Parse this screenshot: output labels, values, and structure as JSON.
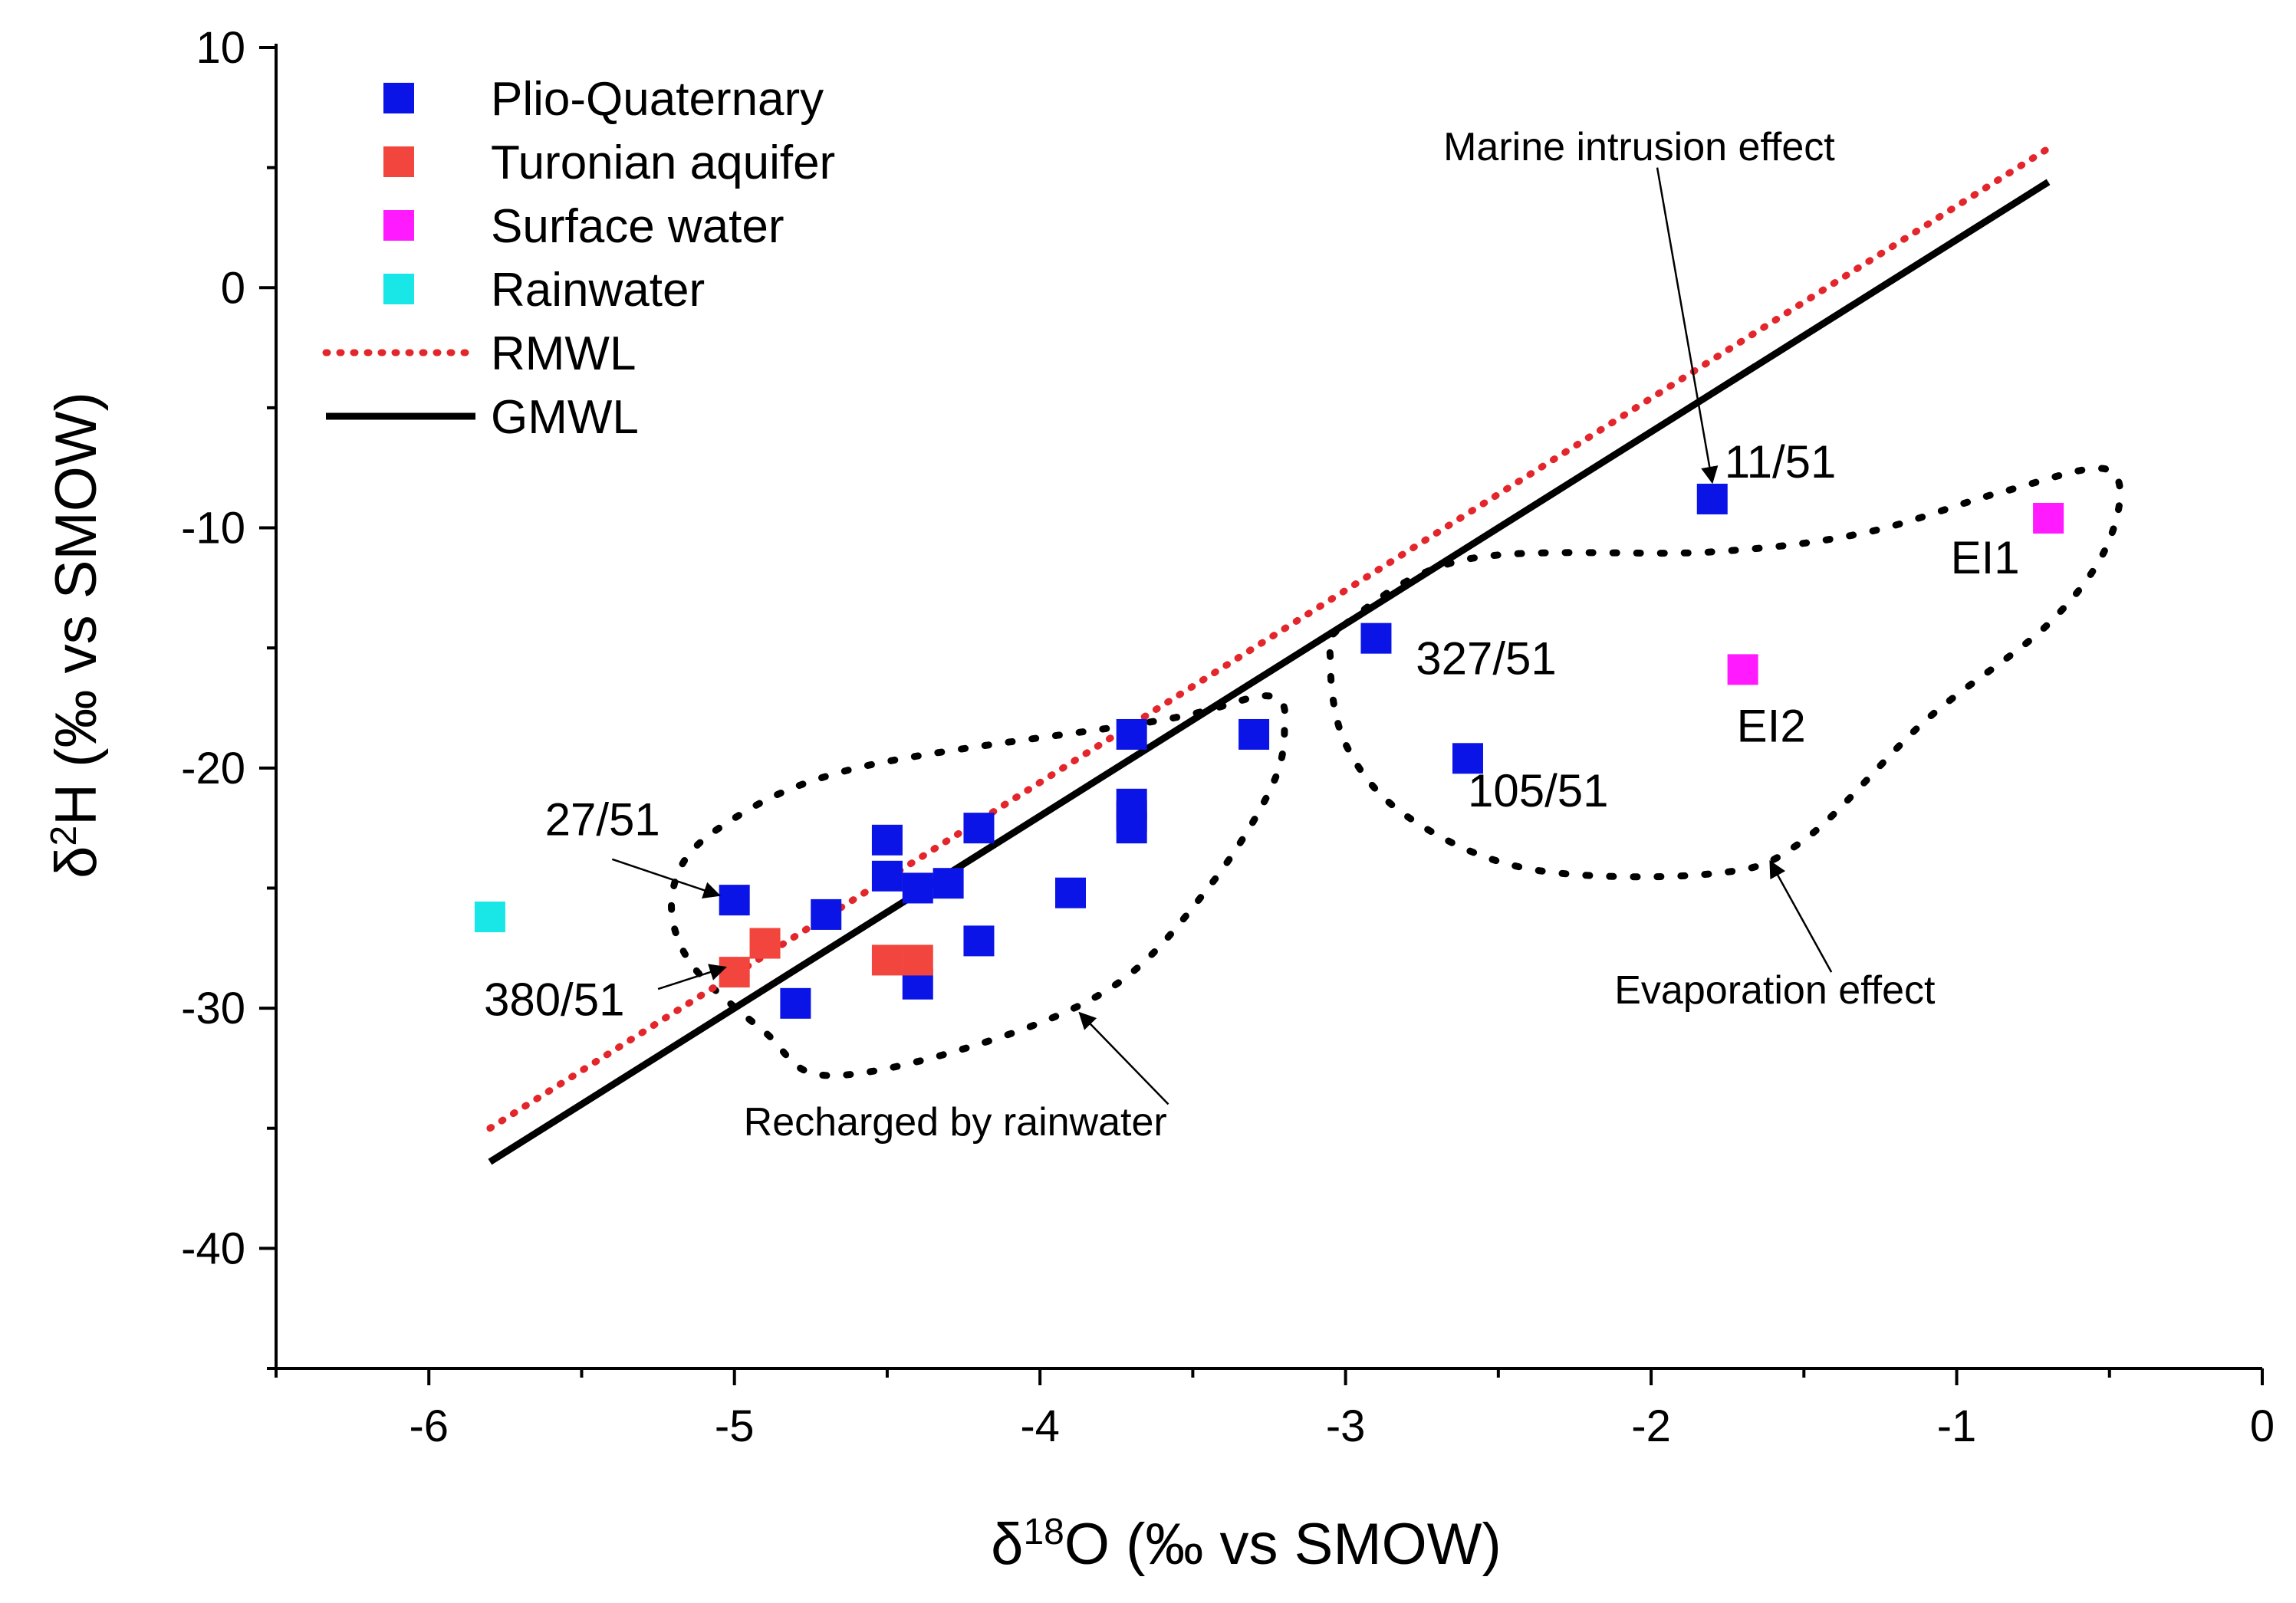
{
  "chart_data": {
    "type": "scatter",
    "title": "",
    "xlabel": {
      "prefix": "δ",
      "sup": "18",
      "suffix": "O (‰ vs SMOW)"
    },
    "ylabel": {
      "prefix": "δ",
      "sup": "2",
      "suffix": "H (‰ vs SMOW)"
    },
    "xlim": [
      -6.5,
      0
    ],
    "ylim": [
      -45,
      10
    ],
    "xticks": [
      -6,
      -5,
      -4,
      -3,
      -2,
      -1,
      0
    ],
    "yticks": [
      10,
      0,
      -10,
      -20,
      -30,
      -40
    ],
    "xtick_labels": [
      "-6",
      "-5",
      "-4",
      "-3",
      "-2",
      "-1",
      "0"
    ],
    "ytick_labels": [
      "10",
      "0",
      "-10",
      "-20",
      "-30",
      "-40"
    ],
    "grid": false,
    "legend_position": "top-left",
    "series": [
      {
        "name": "Plio-Quaternary",
        "kind": "points",
        "color": "#0a14e6",
        "points": [
          [
            -5.0,
            -25.5
          ],
          [
            -4.8,
            -29.8
          ],
          [
            -4.7,
            -26.1
          ],
          [
            -4.5,
            -23.0
          ],
          [
            -4.5,
            -24.5
          ],
          [
            -4.4,
            -25.0
          ],
          [
            -4.3,
            -24.8
          ],
          [
            -4.4,
            -29.0
          ],
          [
            -4.2,
            -22.5
          ],
          [
            -4.2,
            -27.2
          ],
          [
            -3.9,
            -25.2
          ],
          [
            -3.7,
            -18.6
          ],
          [
            -3.7,
            -21.5
          ],
          [
            -3.7,
            -22.0
          ],
          [
            -3.7,
            -22.5
          ],
          [
            -3.3,
            -18.6
          ],
          [
            -2.9,
            -14.6
          ],
          [
            -2.6,
            -19.6
          ],
          [
            -1.8,
            -8.8
          ]
        ]
      },
      {
        "name": "Turonian aquifer",
        "kind": "points",
        "color": "#f2453d",
        "points": [
          [
            -5.0,
            -28.5
          ],
          [
            -4.9,
            -27.3
          ],
          [
            -4.5,
            -28.0
          ],
          [
            -4.4,
            -28.0
          ]
        ]
      },
      {
        "name": "Surface water",
        "kind": "points",
        "color": "#ff1aff",
        "points": [
          [
            -0.7,
            -9.6
          ],
          [
            -1.7,
            -15.9
          ]
        ]
      },
      {
        "name": "Rainwater",
        "kind": "points",
        "color": "#19e6e6",
        "points": [
          [
            -5.8,
            -26.2
          ]
        ]
      },
      {
        "name": "RMWL",
        "kind": "line",
        "style": "dotted",
        "color": "#e3262b",
        "points": [
          [
            -5.8,
            -35.0
          ],
          [
            -0.7,
            5.8
          ]
        ]
      },
      {
        "name": "GMWL",
        "kind": "line",
        "style": "solid",
        "color": "#000000",
        "points": [
          [
            -5.8,
            -36.4
          ],
          [
            -0.7,
            4.4
          ]
        ]
      }
    ],
    "point_labels": [
      {
        "text": "11/51",
        "x": -1.76,
        "y": -7.9
      },
      {
        "text": "EI1",
        "x": -1.02,
        "y": -11.9
      },
      {
        "text": "327/51",
        "x": -2.77,
        "y": -16.1
      },
      {
        "text": "EI2",
        "x": -1.72,
        "y": -18.9
      },
      {
        "text": "105/51",
        "x": -2.6,
        "y": -21.6
      },
      {
        "text": "27/51",
        "x": -5.62,
        "y": -22.8
      },
      {
        "text": "380/51",
        "x": -5.82,
        "y": -30.3
      }
    ],
    "regions": [
      {
        "name": "evaporation-region",
        "path": [
          [
            -3.0,
            -14.0
          ],
          [
            -2.6,
            -11.3
          ],
          [
            -1.8,
            -11.0
          ],
          [
            -1.3,
            -10.2
          ],
          [
            -0.85,
            -8.5
          ],
          [
            -0.5,
            -7.6
          ],
          [
            -0.5,
            -10.5
          ],
          [
            -0.7,
            -14.0
          ],
          [
            -1.1,
            -18.0
          ],
          [
            -1.5,
            -23.0
          ],
          [
            -1.8,
            -24.4
          ],
          [
            -2.4,
            -24.2
          ],
          [
            -2.8,
            -22.0
          ],
          [
            -3.0,
            -19.0
          ],
          [
            -3.05,
            -15.5
          ]
        ],
        "closed": true
      },
      {
        "name": "recharge-region",
        "path": [
          [
            -3.25,
            -17.0
          ],
          [
            -3.6,
            -18.0
          ],
          [
            -4.6,
            -20.0
          ],
          [
            -5.05,
            -22.5
          ],
          [
            -5.2,
            -25.0
          ],
          [
            -5.15,
            -28.0
          ],
          [
            -4.9,
            -31.0
          ],
          [
            -4.7,
            -32.8
          ],
          [
            -4.2,
            -31.5
          ],
          [
            -3.75,
            -29.0
          ],
          [
            -3.45,
            -25.0
          ],
          [
            -3.25,
            -21.0
          ],
          [
            -3.2,
            -18.5
          ]
        ],
        "closed": true
      }
    ],
    "annotations": [
      {
        "text": "Marine intrusion effect",
        "x": -2.68,
        "y": 5.3,
        "arrow_from": [
          -1.98,
          5.0
        ],
        "arrow_to": [
          -1.8,
          -8.1
        ]
      },
      {
        "text": "Evaporation effect",
        "x": -2.12,
        "y": -29.8,
        "arrow_from": [
          -1.41,
          -28.5
        ],
        "arrow_to": [
          -1.61,
          -23.9
        ]
      },
      {
        "text": "Recharged by rainwater",
        "x": -4.97,
        "y": -35.3,
        "arrow_from": [
          -3.58,
          -34.0
        ],
        "arrow_to": [
          -3.87,
          -30.2
        ]
      },
      {
        "text": "",
        "arrow_from": [
          -5.4,
          -23.8
        ],
        "arrow_to": [
          -5.05,
          -25.3
        ]
      },
      {
        "text": "",
        "arrow_from": [
          -5.25,
          -29.2
        ],
        "arrow_to": [
          -5.03,
          -28.3
        ]
      }
    ]
  }
}
